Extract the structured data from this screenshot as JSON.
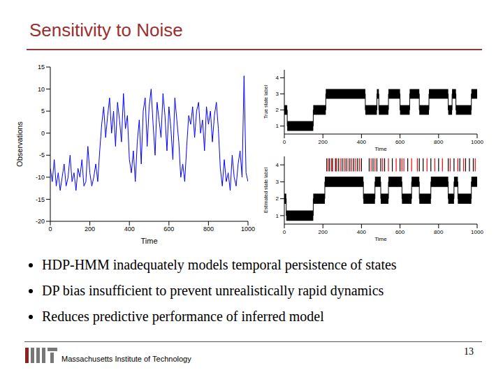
{
  "title": "Sensitivity to Noise",
  "bullets": [
    "HDP-HMM inadequately models temporal persistence of states",
    "DP bias insufficient to prevent unrealistically rapid dynamics",
    "Reduces predictive performance of inferred model"
  ],
  "footer": "Massachusetts Institute of Technology",
  "page": "13",
  "chart_data": [
    {
      "type": "line",
      "xlabel": "Time",
      "ylabel": "Observations",
      "color": "#0000ff",
      "xlim": [
        0,
        1000
      ],
      "ylim": [
        -20,
        15
      ],
      "xticks": [
        0,
        200,
        400,
        600,
        800,
        1000
      ],
      "yticks": [
        -20,
        -15,
        -10,
        -5,
        0,
        5,
        10,
        15
      ],
      "x": [
        0,
        10,
        20,
        30,
        40,
        50,
        60,
        70,
        80,
        90,
        100,
        110,
        120,
        130,
        140,
        150,
        160,
        170,
        180,
        190,
        200,
        210,
        220,
        230,
        240,
        250,
        260,
        270,
        280,
        290,
        300,
        310,
        320,
        330,
        340,
        350,
        360,
        370,
        380,
        390,
        400,
        410,
        420,
        430,
        440,
        450,
        460,
        470,
        480,
        490,
        500,
        510,
        520,
        530,
        540,
        550,
        560,
        570,
        580,
        590,
        600,
        610,
        620,
        630,
        640,
        650,
        660,
        670,
        680,
        690,
        700,
        710,
        720,
        730,
        740,
        750,
        760,
        770,
        780,
        790,
        800,
        810,
        820,
        830,
        840,
        850,
        860,
        870,
        880,
        890,
        900,
        910,
        920,
        930,
        940,
        950,
        960,
        970,
        980,
        990,
        1000
      ],
      "values": [
        -8,
        -11,
        -6,
        -12,
        -9,
        -13,
        -10,
        -7,
        -12,
        -10,
        -5,
        -11,
        -9,
        -13,
        -8,
        -10,
        -6,
        -12,
        -11,
        -3,
        -9,
        -12,
        -10,
        -7,
        -11,
        -4,
        2,
        6,
        -1,
        4,
        8,
        0,
        5,
        -3,
        7,
        3,
        -2,
        9,
        1,
        4,
        -6,
        -9,
        -4,
        -11,
        -2,
        3,
        -7,
        5,
        8,
        -3,
        6,
        10,
        2,
        -5,
        7,
        3,
        -1,
        9,
        4,
        -4,
        6,
        1,
        -6,
        8,
        3,
        -2,
        -10,
        -7,
        -11,
        -3,
        4,
        2,
        6,
        -1,
        5,
        7,
        0,
        3,
        -4,
        6,
        2,
        5,
        -2,
        4,
        7,
        1,
        -8,
        -12,
        -6,
        -11,
        -9,
        -13,
        -5,
        -10,
        -12,
        -7,
        -4,
        -10,
        13,
        -9,
        -11
      ]
    },
    {
      "type": "state_sequence",
      "xlabel": "Time",
      "ylabel": "True state label",
      "color": "#000000",
      "xlim": [
        0,
        1000
      ],
      "ylim": [
        0.5,
        4.5
      ],
      "xticks": [
        0,
        200,
        400,
        600,
        800,
        1000
      ],
      "yticks": [
        1,
        2,
        3,
        4
      ],
      "segments": [
        {
          "start": 0,
          "end": 15,
          "state": 2
        },
        {
          "start": 15,
          "end": 150,
          "state": 1
        },
        {
          "start": 150,
          "end": 215,
          "state": 2
        },
        {
          "start": 215,
          "end": 420,
          "state": 3
        },
        {
          "start": 420,
          "end": 480,
          "state": 2
        },
        {
          "start": 480,
          "end": 490,
          "state": 3
        },
        {
          "start": 490,
          "end": 540,
          "state": 2
        },
        {
          "start": 540,
          "end": 600,
          "state": 3
        },
        {
          "start": 600,
          "end": 650,
          "state": 2
        },
        {
          "start": 650,
          "end": 700,
          "state": 3
        },
        {
          "start": 700,
          "end": 750,
          "state": 2
        },
        {
          "start": 750,
          "end": 850,
          "state": 3
        },
        {
          "start": 850,
          "end": 870,
          "state": 2
        },
        {
          "start": 870,
          "end": 890,
          "state": 3
        },
        {
          "start": 890,
          "end": 970,
          "state": 2
        },
        {
          "start": 970,
          "end": 1000,
          "state": 3
        }
      ],
      "spikes": []
    },
    {
      "type": "state_sequence",
      "xlabel": "Time",
      "ylabel": "Estimated state label",
      "color": "#000000",
      "xlim": [
        0,
        1000
      ],
      "ylim": [
        0.5,
        4.5
      ],
      "xticks": [
        0,
        200,
        400,
        600,
        800,
        1000
      ],
      "yticks": [
        1,
        2,
        3,
        4
      ],
      "segments": [
        {
          "start": 0,
          "end": 10,
          "state": 2
        },
        {
          "start": 10,
          "end": 150,
          "state": 1
        },
        {
          "start": 150,
          "end": 210,
          "state": 2
        },
        {
          "start": 210,
          "end": 410,
          "state": 3
        },
        {
          "start": 410,
          "end": 470,
          "state": 2
        },
        {
          "start": 470,
          "end": 500,
          "state": 3
        },
        {
          "start": 500,
          "end": 540,
          "state": 2
        },
        {
          "start": 540,
          "end": 610,
          "state": 3
        },
        {
          "start": 610,
          "end": 660,
          "state": 2
        },
        {
          "start": 660,
          "end": 700,
          "state": 3
        },
        {
          "start": 700,
          "end": 760,
          "state": 2
        },
        {
          "start": 760,
          "end": 850,
          "state": 3
        },
        {
          "start": 850,
          "end": 880,
          "state": 2
        },
        {
          "start": 880,
          "end": 900,
          "state": 3
        },
        {
          "start": 900,
          "end": 970,
          "state": 2
        },
        {
          "start": 970,
          "end": 1000,
          "state": 3
        }
      ],
      "spikes": [
        {
          "color": "#000000",
          "state": 4,
          "x": [
            220,
            235,
            250,
            265,
            280,
            300,
            320,
            340,
            360,
            380,
            400,
            440,
            460,
            480,
            500,
            520,
            560,
            600,
            640,
            700,
            720,
            760,
            800,
            850,
            880,
            910,
            940,
            960,
            980
          ]
        },
        {
          "color": "#ff0000",
          "state": 4,
          "x": [
            228,
            245,
            270,
            290,
            310,
            330,
            350,
            370,
            390,
            450,
            470,
            510,
            540,
            580,
            610,
            620,
            660,
            690,
            740,
            780,
            820,
            860,
            900,
            930,
            990
          ]
        }
      ]
    }
  ]
}
